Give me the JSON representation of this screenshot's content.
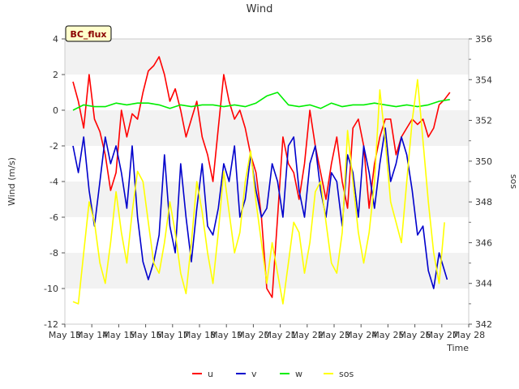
{
  "chart_data": {
    "type": "line",
    "title": "Wind",
    "station_label": "BC_flux",
    "xlabel": "Time",
    "ylabel_left": "Wind (m/s)",
    "ylabel_right": "sos",
    "x_range_days": [
      13,
      28
    ],
    "x_ticks": [
      {
        "day": 13,
        "label": "May 13"
      },
      {
        "day": 14,
        "label": "May 14"
      },
      {
        "day": 15,
        "label": "May 15"
      },
      {
        "day": 16,
        "label": "May 16"
      },
      {
        "day": 17,
        "label": "May 17"
      },
      {
        "day": 18,
        "label": "May 18"
      },
      {
        "day": 19,
        "label": "May 19"
      },
      {
        "day": 20,
        "label": "May 20"
      },
      {
        "day": 21,
        "label": "May 21"
      },
      {
        "day": 22,
        "label": "May 22"
      },
      {
        "day": 23,
        "label": "May 23"
      },
      {
        "day": 24,
        "label": "May 24"
      },
      {
        "day": 25,
        "label": "May 25"
      },
      {
        "day": 26,
        "label": "May 26"
      },
      {
        "day": 27,
        "label": "May 27"
      },
      {
        "day": 28,
        "label": "May 28"
      }
    ],
    "y_left_range": [
      -12,
      4
    ],
    "y_left_ticks": [
      4,
      2,
      0,
      -2,
      -4,
      -6,
      -8,
      -10,
      -12
    ],
    "y_right_range": [
      342,
      356
    ],
    "y_right_ticks": [
      356,
      354,
      352,
      350,
      348,
      346,
      344,
      342
    ],
    "grid_bands": true,
    "legend_position": "bottom-center",
    "series": [
      {
        "name": "u",
        "color": "#ff0000",
        "axis": "left",
        "x": [
          13.3,
          13.5,
          13.7,
          13.9,
          14.1,
          14.3,
          14.5,
          14.7,
          14.9,
          15.1,
          15.3,
          15.5,
          15.7,
          15.9,
          16.1,
          16.3,
          16.5,
          16.7,
          16.9,
          17.1,
          17.3,
          17.5,
          17.7,
          17.9,
          18.1,
          18.3,
          18.5,
          18.7,
          18.9,
          19.1,
          19.3,
          19.5,
          19.7,
          19.9,
          20.1,
          20.3,
          20.5,
          20.7,
          20.9,
          21.1,
          21.3,
          21.5,
          21.7,
          21.9,
          22.1,
          22.3,
          22.5,
          22.7,
          22.9,
          23.1,
          23.3,
          23.5,
          23.7,
          23.9,
          24.1,
          24.3,
          24.5,
          24.7,
          24.9,
          25.1,
          25.3,
          25.5,
          25.7,
          25.9,
          26.1,
          26.3,
          26.5,
          26.7,
          26.9,
          27.1,
          27.3
        ],
        "y": [
          1.6,
          0.5,
          -1.0,
          2.0,
          -0.5,
          -1.2,
          -2.5,
          -4.5,
          -3.5,
          0.0,
          -1.5,
          -0.2,
          -0.5,
          1.0,
          2.2,
          2.5,
          3.0,
          2.0,
          0.5,
          1.2,
          0.0,
          -1.5,
          -0.5,
          0.5,
          -1.5,
          -2.5,
          -4.0,
          -1.0,
          2.0,
          0.5,
          -0.5,
          0.0,
          -1.0,
          -2.5,
          -3.5,
          -6.0,
          -10.0,
          -10.5,
          -6.0,
          -1.5,
          -3.0,
          -3.5,
          -5.0,
          -3.0,
          0.0,
          -2.0,
          -3.5,
          -5.0,
          -3.0,
          -1.5,
          -4.0,
          -5.5,
          -1.0,
          -0.5,
          -2.0,
          -5.5,
          -3.0,
          -1.5,
          -0.5,
          -0.5,
          -2.5,
          -1.5,
          -1.0,
          -0.5,
          -0.8,
          -0.5,
          -1.5,
          -1.0,
          0.3,
          0.6,
          1.0
        ]
      },
      {
        "name": "v",
        "color": "#0000cc",
        "axis": "left",
        "x": [
          13.3,
          13.5,
          13.7,
          13.9,
          14.1,
          14.3,
          14.5,
          14.7,
          14.9,
          15.1,
          15.3,
          15.5,
          15.7,
          15.9,
          16.1,
          16.3,
          16.5,
          16.7,
          16.9,
          17.1,
          17.3,
          17.5,
          17.7,
          17.9,
          18.1,
          18.3,
          18.5,
          18.7,
          18.9,
          19.1,
          19.3,
          19.5,
          19.7,
          19.9,
          20.1,
          20.3,
          20.5,
          20.7,
          20.9,
          21.1,
          21.3,
          21.5,
          21.7,
          21.9,
          22.1,
          22.3,
          22.5,
          22.7,
          22.9,
          23.1,
          23.3,
          23.5,
          23.7,
          23.9,
          24.1,
          24.3,
          24.5,
          24.7,
          24.9,
          25.1,
          25.3,
          25.5,
          25.7,
          25.9,
          26.1,
          26.3,
          26.5,
          26.7,
          26.9,
          27.1,
          27.2
        ],
        "y": [
          -2.0,
          -3.5,
          -1.5,
          -4.5,
          -6.5,
          -4.0,
          -1.5,
          -3.0,
          -2.0,
          -3.5,
          -5.5,
          -2.0,
          -6.0,
          -8.5,
          -9.5,
          -8.5,
          -7.0,
          -2.5,
          -6.5,
          -8.0,
          -3.0,
          -6.0,
          -8.5,
          -5.5,
          -3.0,
          -6.5,
          -7.0,
          -5.5,
          -3.0,
          -4.0,
          -2.0,
          -6.0,
          -5.0,
          -2.5,
          -4.5,
          -6.0,
          -5.5,
          -3.0,
          -4.0,
          -6.0,
          -2.0,
          -1.5,
          -4.5,
          -6.0,
          -3.0,
          -2.0,
          -4.5,
          -6.0,
          -3.5,
          -4.0,
          -6.5,
          -2.5,
          -3.5,
          -6.0,
          -2.0,
          -3.5,
          -5.5,
          -3.0,
          -1.0,
          -4.0,
          -3.0,
          -1.5,
          -2.5,
          -4.5,
          -7.0,
          -6.5,
          -9.0,
          -10.0,
          -8.0,
          -9.0,
          -9.5
        ]
      },
      {
        "name": "w",
        "color": "#00ee00",
        "axis": "left",
        "x": [
          13.3,
          13.7,
          14.1,
          14.5,
          14.9,
          15.3,
          15.7,
          16.1,
          16.5,
          16.9,
          17.3,
          17.7,
          18.1,
          18.5,
          18.9,
          19.3,
          19.7,
          20.1,
          20.5,
          20.9,
          21.3,
          21.7,
          22.1,
          22.5,
          22.9,
          23.3,
          23.7,
          24.1,
          24.5,
          24.9,
          25.3,
          25.7,
          26.1,
          26.5,
          26.9,
          27.3
        ],
        "y": [
          0.0,
          0.3,
          0.2,
          0.2,
          0.4,
          0.3,
          0.4,
          0.4,
          0.3,
          0.1,
          0.3,
          0.2,
          0.3,
          0.3,
          0.2,
          0.3,
          0.2,
          0.4,
          0.8,
          1.0,
          0.3,
          0.2,
          0.3,
          0.1,
          0.4,
          0.2,
          0.3,
          0.3,
          0.4,
          0.3,
          0.2,
          0.3,
          0.2,
          0.3,
          0.5,
          0.6
        ]
      },
      {
        "name": "sos",
        "color": "#ffff00",
        "axis": "right",
        "x": [
          13.3,
          13.5,
          13.7,
          13.9,
          14.1,
          14.3,
          14.5,
          14.7,
          14.9,
          15.1,
          15.3,
          15.5,
          15.7,
          15.9,
          16.1,
          16.3,
          16.5,
          16.7,
          16.9,
          17.1,
          17.3,
          17.5,
          17.7,
          17.9,
          18.1,
          18.3,
          18.5,
          18.7,
          18.9,
          19.1,
          19.3,
          19.5,
          19.7,
          19.9,
          20.1,
          20.3,
          20.5,
          20.7,
          20.9,
          21.1,
          21.3,
          21.5,
          21.7,
          21.9,
          22.1,
          22.3,
          22.5,
          22.7,
          22.9,
          23.1,
          23.3,
          23.5,
          23.7,
          23.9,
          24.1,
          24.3,
          24.5,
          24.7,
          24.9,
          25.1,
          25.3,
          25.5,
          25.7,
          25.9,
          26.1,
          26.3,
          26.5,
          26.7,
          26.9,
          27.1
        ],
        "y": [
          343.1,
          343.0,
          345.5,
          348.0,
          347.0,
          345.0,
          344.0,
          346.0,
          348.5,
          346.5,
          345.0,
          347.5,
          349.5,
          349.0,
          347.0,
          345.0,
          344.5,
          346.0,
          348.0,
          346.5,
          344.5,
          343.5,
          346.0,
          349.0,
          347.5,
          345.5,
          344.0,
          346.5,
          349.5,
          347.5,
          345.5,
          346.5,
          349.0,
          350.5,
          348.0,
          346.0,
          344.0,
          346.0,
          344.5,
          343.0,
          345.0,
          347.0,
          346.5,
          344.5,
          346.0,
          348.5,
          349.0,
          347.0,
          345.0,
          344.5,
          346.5,
          351.5,
          349.0,
          346.5,
          345.0,
          346.5,
          349.0,
          353.5,
          351.0,
          348.0,
          347.0,
          346.0,
          349.0,
          352.0,
          354.0,
          351.0,
          348.0,
          345.5,
          344.0,
          347.0
        ]
      }
    ]
  }
}
